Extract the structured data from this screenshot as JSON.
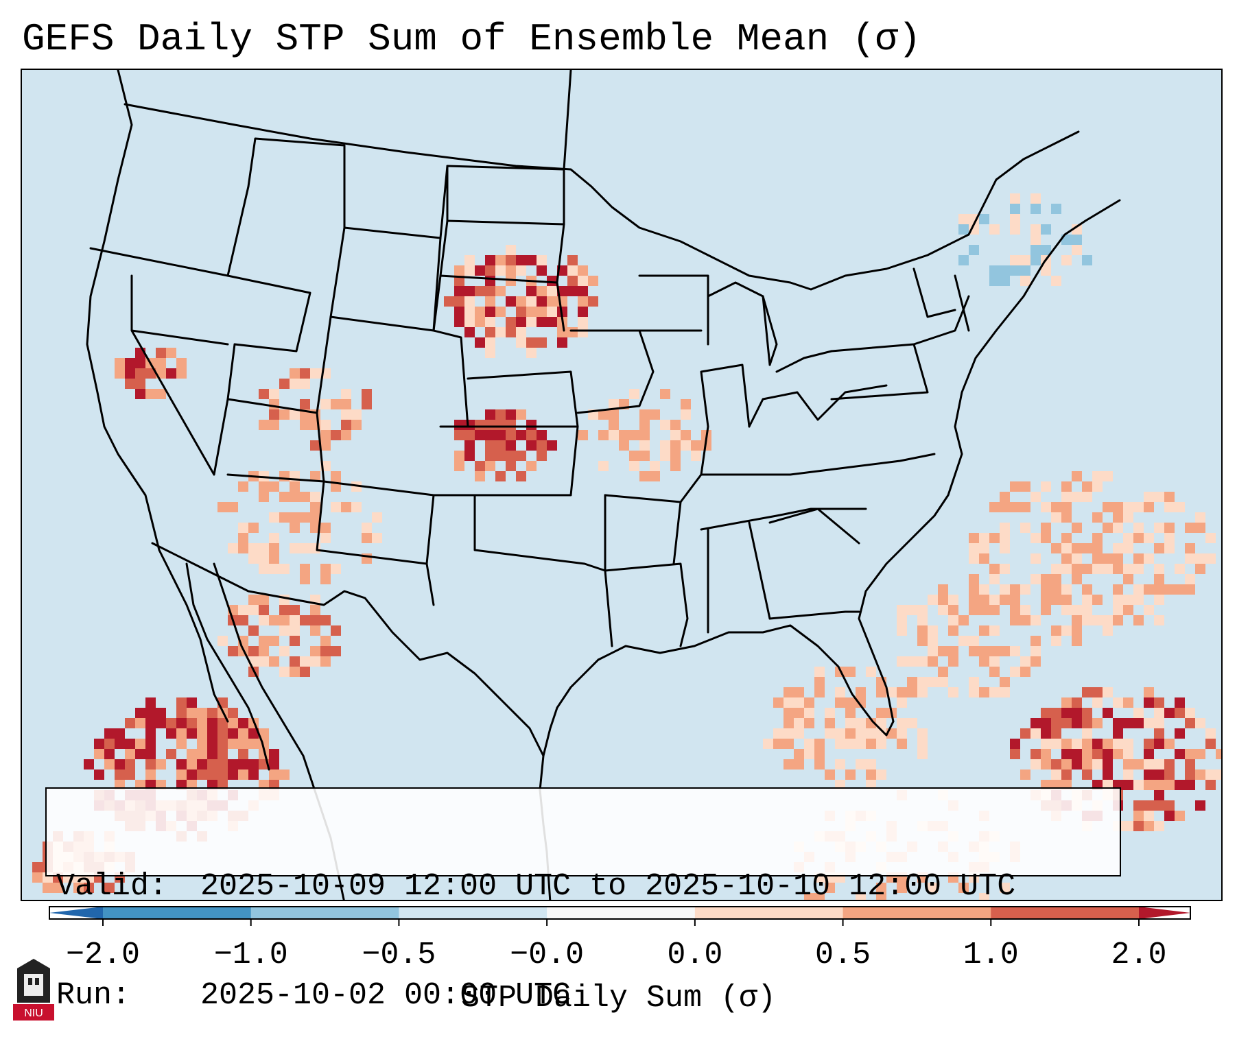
{
  "title": "GEFS Daily STP Sum of Ensemble Mean (σ)",
  "info": {
    "valid_label": "Valid:",
    "valid_value": "2025-10-09 12:00 UTC to 2025-10-10 12:00 UTC",
    "run_label": "Run:",
    "run_value": "2025-10-02 00:00 UTC"
  },
  "colorbar": {
    "label": "STP Daily Sum (σ)",
    "ticks": [
      "−2.0",
      "−1.0",
      "−0.5",
      "−0.0",
      "0.0",
      "0.5",
      "1.0",
      "2.0"
    ],
    "colors": [
      "#4393c3",
      "#92c5de",
      "#d1e5f0",
      "#f7f7f7",
      "#fddbc7",
      "#f4a582",
      "#d6604d"
    ],
    "under_color": "#2166ac",
    "over_color": "#b2182b"
  },
  "logo": {
    "text": "NIU",
    "color": "#c8102e"
  },
  "map_colors": {
    "background": "#d1e5f0",
    "light_orange": "#fddbc7",
    "orange": "#f4a582",
    "red": "#d6604d",
    "dark_red": "#b2182b",
    "light_blue": "#92c5de"
  }
}
